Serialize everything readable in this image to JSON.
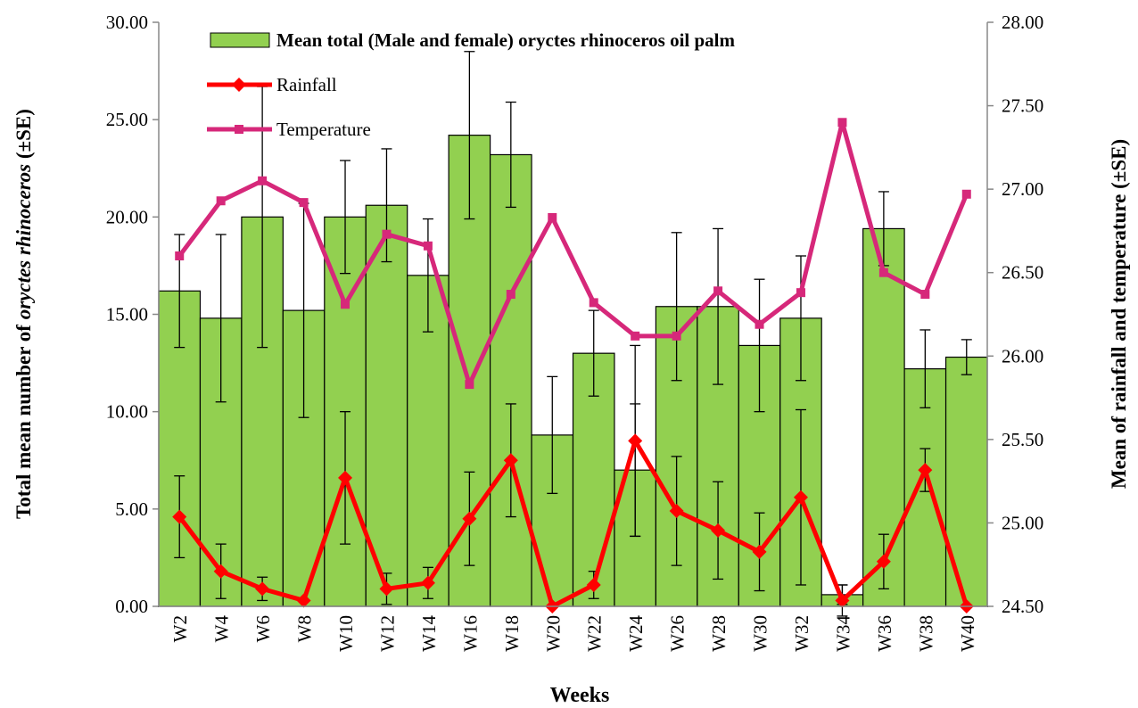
{
  "chart_data": {
    "type": "bar_line",
    "legend_position": "top",
    "x_label": "Weeks",
    "y_label_parts": [
      "Total mean number of ",
      "oryctes rhinoceros",
      " (±SE)"
    ],
    "y2_label": "Mean  of rainfall and temperature (±SE)",
    "categories": [
      "W2",
      "W4",
      "W6",
      "W8",
      "W10",
      "W12",
      "W14",
      "W16",
      "W18",
      "W20",
      "W22",
      "W24",
      "W26",
      "W28",
      "W30",
      "W32",
      "W34",
      "W36",
      "W38",
      "W40"
    ],
    "ylim": [
      0,
      30
    ],
    "yticks": [
      {
        "value": 0,
        "label": "0.00"
      },
      {
        "value": 5,
        "label": "5.00"
      },
      {
        "value": 10,
        "label": "10.00"
      },
      {
        "value": 15,
        "label": "15.00"
      },
      {
        "value": 20,
        "label": "20.00"
      },
      {
        "value": 25,
        "label": "25.00"
      },
      {
        "value": 30,
        "label": "30.00"
      }
    ],
    "y2lim": [
      24.5,
      28
    ],
    "y2ticks": [
      {
        "value": 24.5,
        "label": "24.50"
      },
      {
        "value": 25,
        "label": "25.00"
      },
      {
        "value": 25.5,
        "label": "25.50"
      },
      {
        "value": 26,
        "label": "26.00"
      },
      {
        "value": 26.5,
        "label": "26.50"
      },
      {
        "value": 27,
        "label": "27.00"
      },
      {
        "value": 27.5,
        "label": "27.50"
      },
      {
        "value": 28,
        "label": "28.00"
      }
    ],
    "series": [
      {
        "name": "Mean total (Male and female) oryctes rhinoceros oil palm",
        "kind": "bar",
        "color": "#92d050",
        "values": [
          16.2,
          14.8,
          20.0,
          15.2,
          20.0,
          20.6,
          17.0,
          24.2,
          23.2,
          8.8,
          13.0,
          7.0,
          15.4,
          15.4,
          13.4,
          14.8,
          0.6,
          19.4,
          12.2,
          12.8
        ],
        "errors": [
          2.9,
          4.3,
          6.7,
          5.5,
          2.9,
          2.9,
          2.9,
          4.3,
          2.7,
          3.0,
          2.2,
          3.4,
          3.8,
          4.0,
          3.4,
          3.2,
          0.5,
          1.9,
          2.0,
          0.9
        ]
      },
      {
        "name": "Rainfall",
        "kind": "line",
        "marker": "diamond",
        "color": "#ff0000",
        "values": [
          4.6,
          1.8,
          0.9,
          0.3,
          6.6,
          0.9,
          1.2,
          4.5,
          7.5,
          0.0,
          1.1,
          8.5,
          4.9,
          3.9,
          2.8,
          5.6,
          0.3,
          2.3,
          7.0,
          0.0
        ],
        "errors": [
          2.1,
          1.4,
          0.6,
          null,
          3.4,
          0.8,
          0.8,
          2.4,
          2.9,
          null,
          0.7,
          4.9,
          2.8,
          2.5,
          2.0,
          4.5,
          0.8,
          1.4,
          1.1,
          null
        ]
      },
      {
        "name": "Temperature",
        "kind": "line",
        "marker": "square",
        "color": "#d6287a",
        "axis": "y2",
        "values": [
          26.6,
          26.93,
          27.05,
          26.92,
          26.31,
          26.73,
          26.66,
          25.83,
          26.37,
          26.83,
          26.32,
          26.12,
          26.12,
          26.39,
          26.19,
          26.38,
          27.4,
          26.5,
          26.37,
          26.97
        ]
      }
    ]
  }
}
